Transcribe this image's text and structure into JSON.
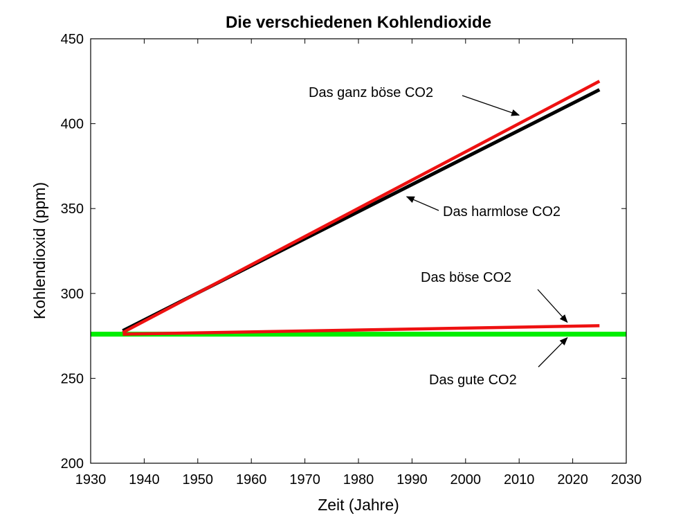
{
  "chart_data": {
    "type": "line",
    "title": "Die verschiedenen Kohlendioxide",
    "xlabel": "Zeit (Jahre)",
    "ylabel": "Kohlendioxid (ppm)",
    "xlim": [
      1930,
      2030
    ],
    "ylim": [
      200,
      450
    ],
    "xticks": [
      1930,
      1940,
      1950,
      1960,
      1970,
      1980,
      1990,
      2000,
      2010,
      2020,
      2030
    ],
    "yticks": [
      200,
      250,
      300,
      350,
      400,
      450
    ],
    "grid": false,
    "series": [
      {
        "color": "#00ee00",
        "x": [
          1930,
          2030
        ],
        "y": [
          276,
          276
        ]
      },
      {
        "color": "#000000",
        "x": [
          1936,
          2025
        ],
        "y": [
          278,
          420
        ]
      },
      {
        "color": "#ee1111",
        "x": [
          1936,
          2025
        ],
        "y": [
          277,
          425
        ]
      },
      {
        "color": "#ee1111",
        "x": [
          1936,
          2025
        ],
        "y": [
          276,
          281
        ]
      }
    ],
    "annotations": [
      {
        "text": "Das ganz böse CO2",
        "arrow_to": [
          2010,
          405
        ]
      },
      {
        "text": "Das harmlose CO2",
        "arrow_to": [
          1989,
          357
        ]
      },
      {
        "text": "Das böse CO2",
        "arrow_to": [
          2019,
          283
        ]
      },
      {
        "text": "Das gute CO2",
        "arrow_to": [
          2019,
          274
        ]
      }
    ]
  }
}
